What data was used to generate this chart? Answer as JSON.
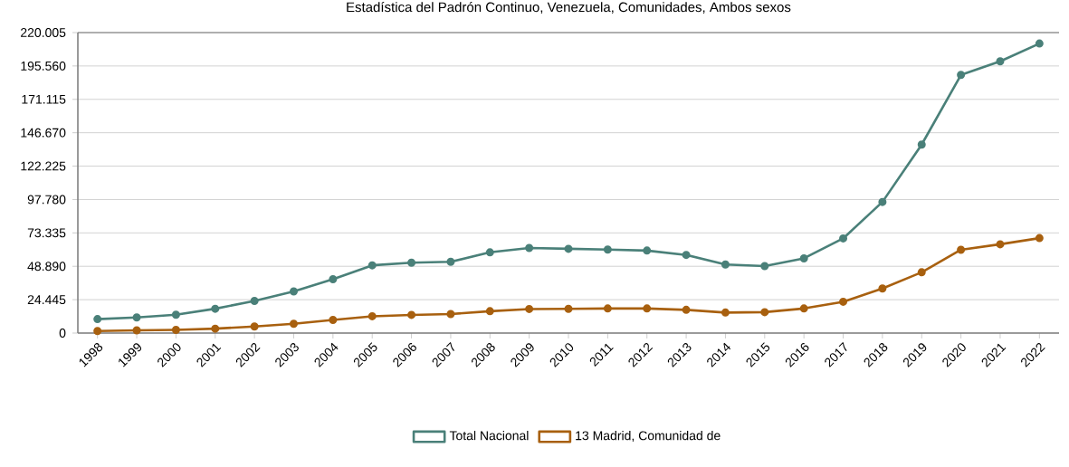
{
  "chart_data": {
    "type": "line",
    "title": "Estadística del Padrón Continuo, Venezuela, Comunidades, Ambos sexos",
    "categories": [
      "1998",
      "1999",
      "2000",
      "2001",
      "2002",
      "2003",
      "2004",
      "2005",
      "2006",
      "2007",
      "2008",
      "2009",
      "2010",
      "2011",
      "2012",
      "2013",
      "2014",
      "2015",
      "2016",
      "2017",
      "2018",
      "2019",
      "2020",
      "2021",
      "2022"
    ],
    "series": [
      {
        "name": "Total Nacional",
        "color": "#4a8079",
        "values": [
          10200,
          11400,
          13400,
          17800,
          23500,
          30500,
          39400,
          49600,
          51500,
          52200,
          59100,
          62300,
          61700,
          61100,
          60400,
          57200,
          50200,
          49000,
          54700,
          69300,
          96000,
          138000,
          189000,
          199000,
          212000
        ]
      },
      {
        "name": "13 Madrid, Comunidad de",
        "color": "#a8600f",
        "values": [
          1500,
          2000,
          2300,
          3200,
          4800,
          6800,
          9600,
          12300,
          13300,
          13900,
          16000,
          17600,
          17700,
          18000,
          18000,
          17000,
          15000,
          15300,
          18000,
          22900,
          32600,
          44500,
          61000,
          65000,
          69500
        ]
      }
    ],
    "ylim": [
      0,
      220005
    ],
    "yticks": [
      0,
      {
        "value": 24445,
        "label": "24.445"
      },
      {
        "value": 48890,
        "label": "48.890"
      },
      {
        "value": 73335,
        "label": "73.335"
      },
      {
        "value": 97780,
        "label": "97.780"
      },
      {
        "value": 122225,
        "label": "122.225"
      },
      {
        "value": 146670,
        "label": "146.670"
      },
      {
        "value": 171115,
        "label": "171.115"
      },
      {
        "value": 195560,
        "label": "195.560"
      },
      {
        "value": 220005,
        "label": "220.005"
      }
    ],
    "grid": "y",
    "legend": "bottom",
    "marker": "circle",
    "line_style": "solid"
  }
}
